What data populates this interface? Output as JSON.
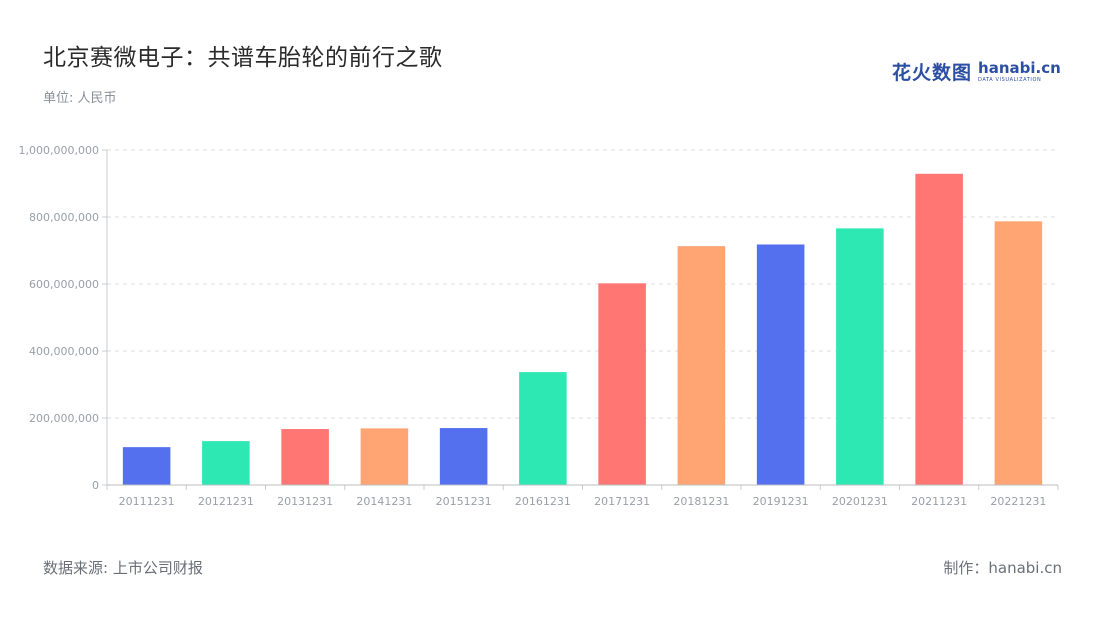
{
  "header": {
    "title": "北京赛微电子：共谱车胎轮的前行之歌",
    "unit": "单位: 人民币"
  },
  "logo": {
    "cn": "花火数图",
    "en": "hanabi.cn",
    "sub": "DATA VISUALIZATION"
  },
  "footer": {
    "source": "数据来源: 上市公司财报",
    "credit": "制作：hanabi.cn"
  },
  "chart_data": {
    "type": "bar",
    "title": "北京赛微电子：共谱车胎轮的前行之歌",
    "ylabel": "单位: 人民币",
    "xlabel": "",
    "categories": [
      "20111231",
      "20121231",
      "20131231",
      "20141231",
      "20151231",
      "20161231",
      "20171231",
      "20181231",
      "20191231",
      "20201231",
      "20211231",
      "20221231"
    ],
    "values": [
      113000000,
      131000000,
      167000000,
      169000000,
      170000000,
      337000000,
      602000000,
      713000000,
      718000000,
      766000000,
      929000000,
      787000000
    ],
    "ylim": [
      0,
      1000000000
    ],
    "yticks": [
      0,
      200000000,
      400000000,
      600000000,
      800000000,
      1000000000
    ],
    "ytick_labels": [
      "0",
      "200,000,000",
      "400,000,000",
      "600,000,000",
      "800,000,000",
      "1,000,000,000"
    ],
    "grid": true,
    "legend": "none",
    "colors": [
      "#5470ee",
      "#2ee8b3",
      "#ff7672",
      "#ffa473"
    ]
  }
}
